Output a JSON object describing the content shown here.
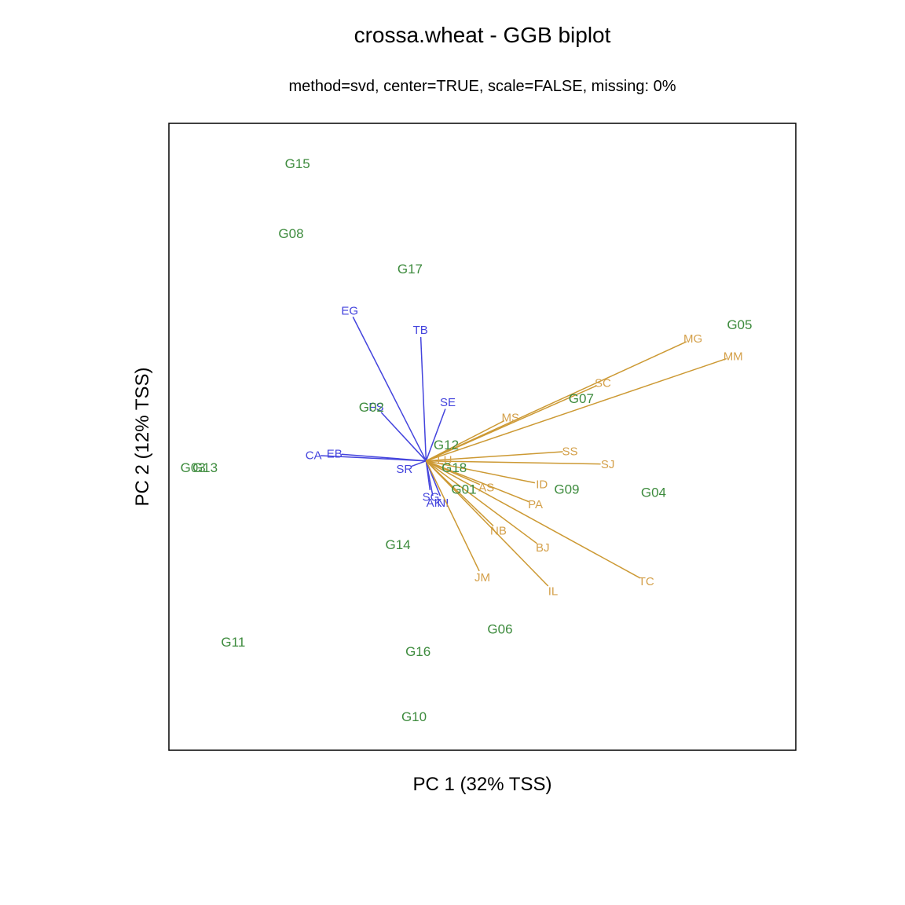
{
  "chart_data": {
    "type": "scatter",
    "title": "crossa.wheat - GGB biplot",
    "subtitle": "method=svd, center=TRUE, scale=FALSE, missing: 0%",
    "xlabel": "PC 1 (32% TSS)",
    "ylabel": "PC 2 (12% TSS)",
    "xlim": [
      -3.2,
      4.6
    ],
    "ylim": [
      -3.6,
      4.2
    ],
    "grid": false,
    "colors": {
      "genotype": "#3d8b3d",
      "location_group1": "#4444dd",
      "location_group2": "#d4a04a",
      "location_line_group2": "#cc9933"
    },
    "genotypes": [
      {
        "label": "G15",
        "x": -1.6,
        "y": 3.7
      },
      {
        "label": "G08",
        "x": -1.68,
        "y": 2.83
      },
      {
        "label": "G17",
        "x": -0.2,
        "y": 2.39
      },
      {
        "label": "G05",
        "x": 3.9,
        "y": 1.7
      },
      {
        "label": "G07",
        "x": 1.93,
        "y": 0.78
      },
      {
        "label": "G02",
        "x": -0.68,
        "y": 0.67
      },
      {
        "label": "G12",
        "x": 0.25,
        "y": 0.2
      },
      {
        "label": "G03",
        "x": -2.9,
        "y": -0.08
      },
      {
        "label": "G13",
        "x": -2.75,
        "y": -0.08
      },
      {
        "label": "G18",
        "x": 0.35,
        "y": -0.08
      },
      {
        "label": "G01",
        "x": 0.47,
        "y": -0.35
      },
      {
        "label": "G09",
        "x": 1.75,
        "y": -0.35
      },
      {
        "label": "G04",
        "x": 2.83,
        "y": -0.39
      },
      {
        "label": "G14",
        "x": -0.35,
        "y": -1.04
      },
      {
        "label": "G06",
        "x": 0.92,
        "y": -2.09
      },
      {
        "label": "G11",
        "x": -2.4,
        "y": -2.25
      },
      {
        "label": "G16",
        "x": -0.1,
        "y": -2.37
      },
      {
        "label": "G10",
        "x": -0.15,
        "y": -3.18
      }
    ],
    "location_vectors": [
      {
        "label": "EG",
        "x": -0.95,
        "y": 1.87,
        "group": 1
      },
      {
        "label": "TB",
        "x": -0.07,
        "y": 1.63,
        "group": 1
      },
      {
        "label": "SE",
        "x": 0.27,
        "y": 0.73,
        "group": 1
      },
      {
        "label": "CA",
        "x": -1.4,
        "y": 0.07,
        "group": 1
      },
      {
        "label": "EB",
        "x": -1.14,
        "y": 0.09,
        "group": 1
      },
      {
        "label": "FS",
        "x": -0.62,
        "y": 0.67,
        "group": 1
      },
      {
        "label": "SR",
        "x": -0.27,
        "y": -0.1,
        "group": 1
      },
      {
        "label": "SG",
        "x": 0.06,
        "y": -0.45,
        "group": 1
      },
      {
        "label": "AK",
        "x": 0.1,
        "y": -0.52,
        "group": 1
      },
      {
        "label": "NI",
        "x": 0.21,
        "y": -0.52,
        "group": 1
      },
      {
        "label": "MG",
        "x": 3.32,
        "y": 1.52,
        "group": 2
      },
      {
        "label": "MM",
        "x": 3.82,
        "y": 1.3,
        "group": 2
      },
      {
        "label": "SC",
        "x": 2.2,
        "y": 0.97,
        "group": 2
      },
      {
        "label": "MS",
        "x": 1.05,
        "y": 0.54,
        "group": 2
      },
      {
        "label": "SS",
        "x": 1.79,
        "y": 0.12,
        "group": 2
      },
      {
        "label": "SJ",
        "x": 2.26,
        "y": -0.04,
        "group": 2
      },
      {
        "label": "LU",
        "x": 0.23,
        "y": 0.01,
        "group": 2
      },
      {
        "label": "ID",
        "x": 1.44,
        "y": -0.29,
        "group": 2
      },
      {
        "label": "AS",
        "x": 0.75,
        "y": -0.33,
        "group": 2
      },
      {
        "label": "PA",
        "x": 1.36,
        "y": -0.54,
        "group": 2
      },
      {
        "label": "NB",
        "x": 0.9,
        "y": -0.87,
        "group": 2
      },
      {
        "label": "BJ",
        "x": 1.45,
        "y": -1.08,
        "group": 2
      },
      {
        "label": "JM",
        "x": 0.7,
        "y": -1.45,
        "group": 2
      },
      {
        "label": "IL",
        "x": 1.58,
        "y": -1.62,
        "group": 2
      },
      {
        "label": "TC",
        "x": 2.74,
        "y": -1.5,
        "group": 2
      }
    ]
  }
}
